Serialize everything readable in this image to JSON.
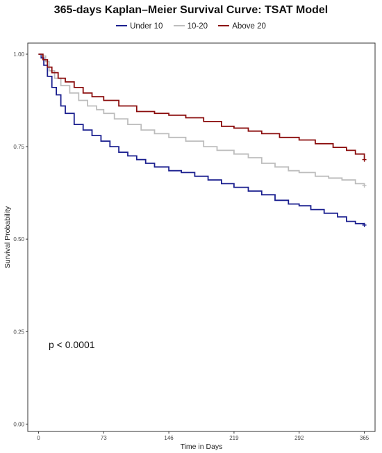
{
  "chart_data": {
    "type": "line",
    "title": "365-days Kaplan–Meier Survival Curve: TSAT Model",
    "xlabel": "Time in Days",
    "ylabel": "Survival Probability",
    "xlim": [
      -12,
      377
    ],
    "ylim": [
      -0.02,
      1.03
    ],
    "xticks": [
      0,
      73,
      146,
      219,
      292,
      365
    ],
    "xtick_labels": [
      "0",
      "73",
      "146",
      "219",
      "292",
      "365"
    ],
    "yticks": [
      0.0,
      0.25,
      0.5,
      0.75,
      1.0
    ],
    "ytick_labels": [
      "0.00",
      "0.25",
      "0.50",
      "0.75",
      "1.00"
    ],
    "grid": false,
    "legend_position": "top",
    "annotation": "p < 0.0001",
    "series": [
      {
        "name": "Under 10",
        "color": "#1a1f8f",
        "points": [
          [
            0,
            1.0
          ],
          [
            3,
            0.99
          ],
          [
            6,
            0.97
          ],
          [
            10,
            0.94
          ],
          [
            15,
            0.91
          ],
          [
            20,
            0.89
          ],
          [
            25,
            0.86
          ],
          [
            30,
            0.84
          ],
          [
            40,
            0.81
          ],
          [
            50,
            0.795
          ],
          [
            60,
            0.78
          ],
          [
            70,
            0.765
          ],
          [
            80,
            0.75
          ],
          [
            90,
            0.735
          ],
          [
            100,
            0.725
          ],
          [
            110,
            0.715
          ],
          [
            120,
            0.705
          ],
          [
            130,
            0.695
          ],
          [
            146,
            0.685
          ],
          [
            160,
            0.68
          ],
          [
            175,
            0.67
          ],
          [
            190,
            0.66
          ],
          [
            205,
            0.65
          ],
          [
            219,
            0.64
          ],
          [
            235,
            0.63
          ],
          [
            250,
            0.62
          ],
          [
            265,
            0.605
          ],
          [
            280,
            0.595
          ],
          [
            292,
            0.59
          ],
          [
            305,
            0.58
          ],
          [
            320,
            0.57
          ],
          [
            335,
            0.56
          ],
          [
            345,
            0.548
          ],
          [
            355,
            0.542
          ],
          [
            365,
            0.538
          ]
        ]
      },
      {
        "name": "10-20",
        "color": "#bdbdbd",
        "points": [
          [
            0,
            1.0
          ],
          [
            4,
            0.995
          ],
          [
            8,
            0.98
          ],
          [
            12,
            0.955
          ],
          [
            18,
            0.935
          ],
          [
            25,
            0.915
          ],
          [
            35,
            0.895
          ],
          [
            45,
            0.875
          ],
          [
            55,
            0.86
          ],
          [
            65,
            0.85
          ],
          [
            73,
            0.84
          ],
          [
            85,
            0.825
          ],
          [
            100,
            0.81
          ],
          [
            115,
            0.795
          ],
          [
            130,
            0.785
          ],
          [
            146,
            0.775
          ],
          [
            165,
            0.765
          ],
          [
            185,
            0.75
          ],
          [
            200,
            0.74
          ],
          [
            219,
            0.73
          ],
          [
            235,
            0.72
          ],
          [
            250,
            0.705
          ],
          [
            265,
            0.695
          ],
          [
            280,
            0.685
          ],
          [
            292,
            0.68
          ],
          [
            310,
            0.67
          ],
          [
            325,
            0.665
          ],
          [
            340,
            0.66
          ],
          [
            355,
            0.65
          ],
          [
            365,
            0.645
          ]
        ]
      },
      {
        "name": "Above 20",
        "color": "#8b0d0d",
        "points": [
          [
            0,
            1.0
          ],
          [
            5,
            0.985
          ],
          [
            10,
            0.965
          ],
          [
            15,
            0.95
          ],
          [
            22,
            0.935
          ],
          [
            30,
            0.925
          ],
          [
            40,
            0.91
          ],
          [
            50,
            0.895
          ],
          [
            60,
            0.885
          ],
          [
            73,
            0.875
          ],
          [
            90,
            0.86
          ],
          [
            110,
            0.845
          ],
          [
            130,
            0.84
          ],
          [
            146,
            0.835
          ],
          [
            165,
            0.828
          ],
          [
            185,
            0.818
          ],
          [
            205,
            0.805
          ],
          [
            219,
            0.8
          ],
          [
            235,
            0.792
          ],
          [
            250,
            0.785
          ],
          [
            270,
            0.775
          ],
          [
            292,
            0.768
          ],
          [
            310,
            0.758
          ],
          [
            330,
            0.748
          ],
          [
            345,
            0.74
          ],
          [
            355,
            0.73
          ],
          [
            365,
            0.715
          ]
        ]
      }
    ]
  }
}
